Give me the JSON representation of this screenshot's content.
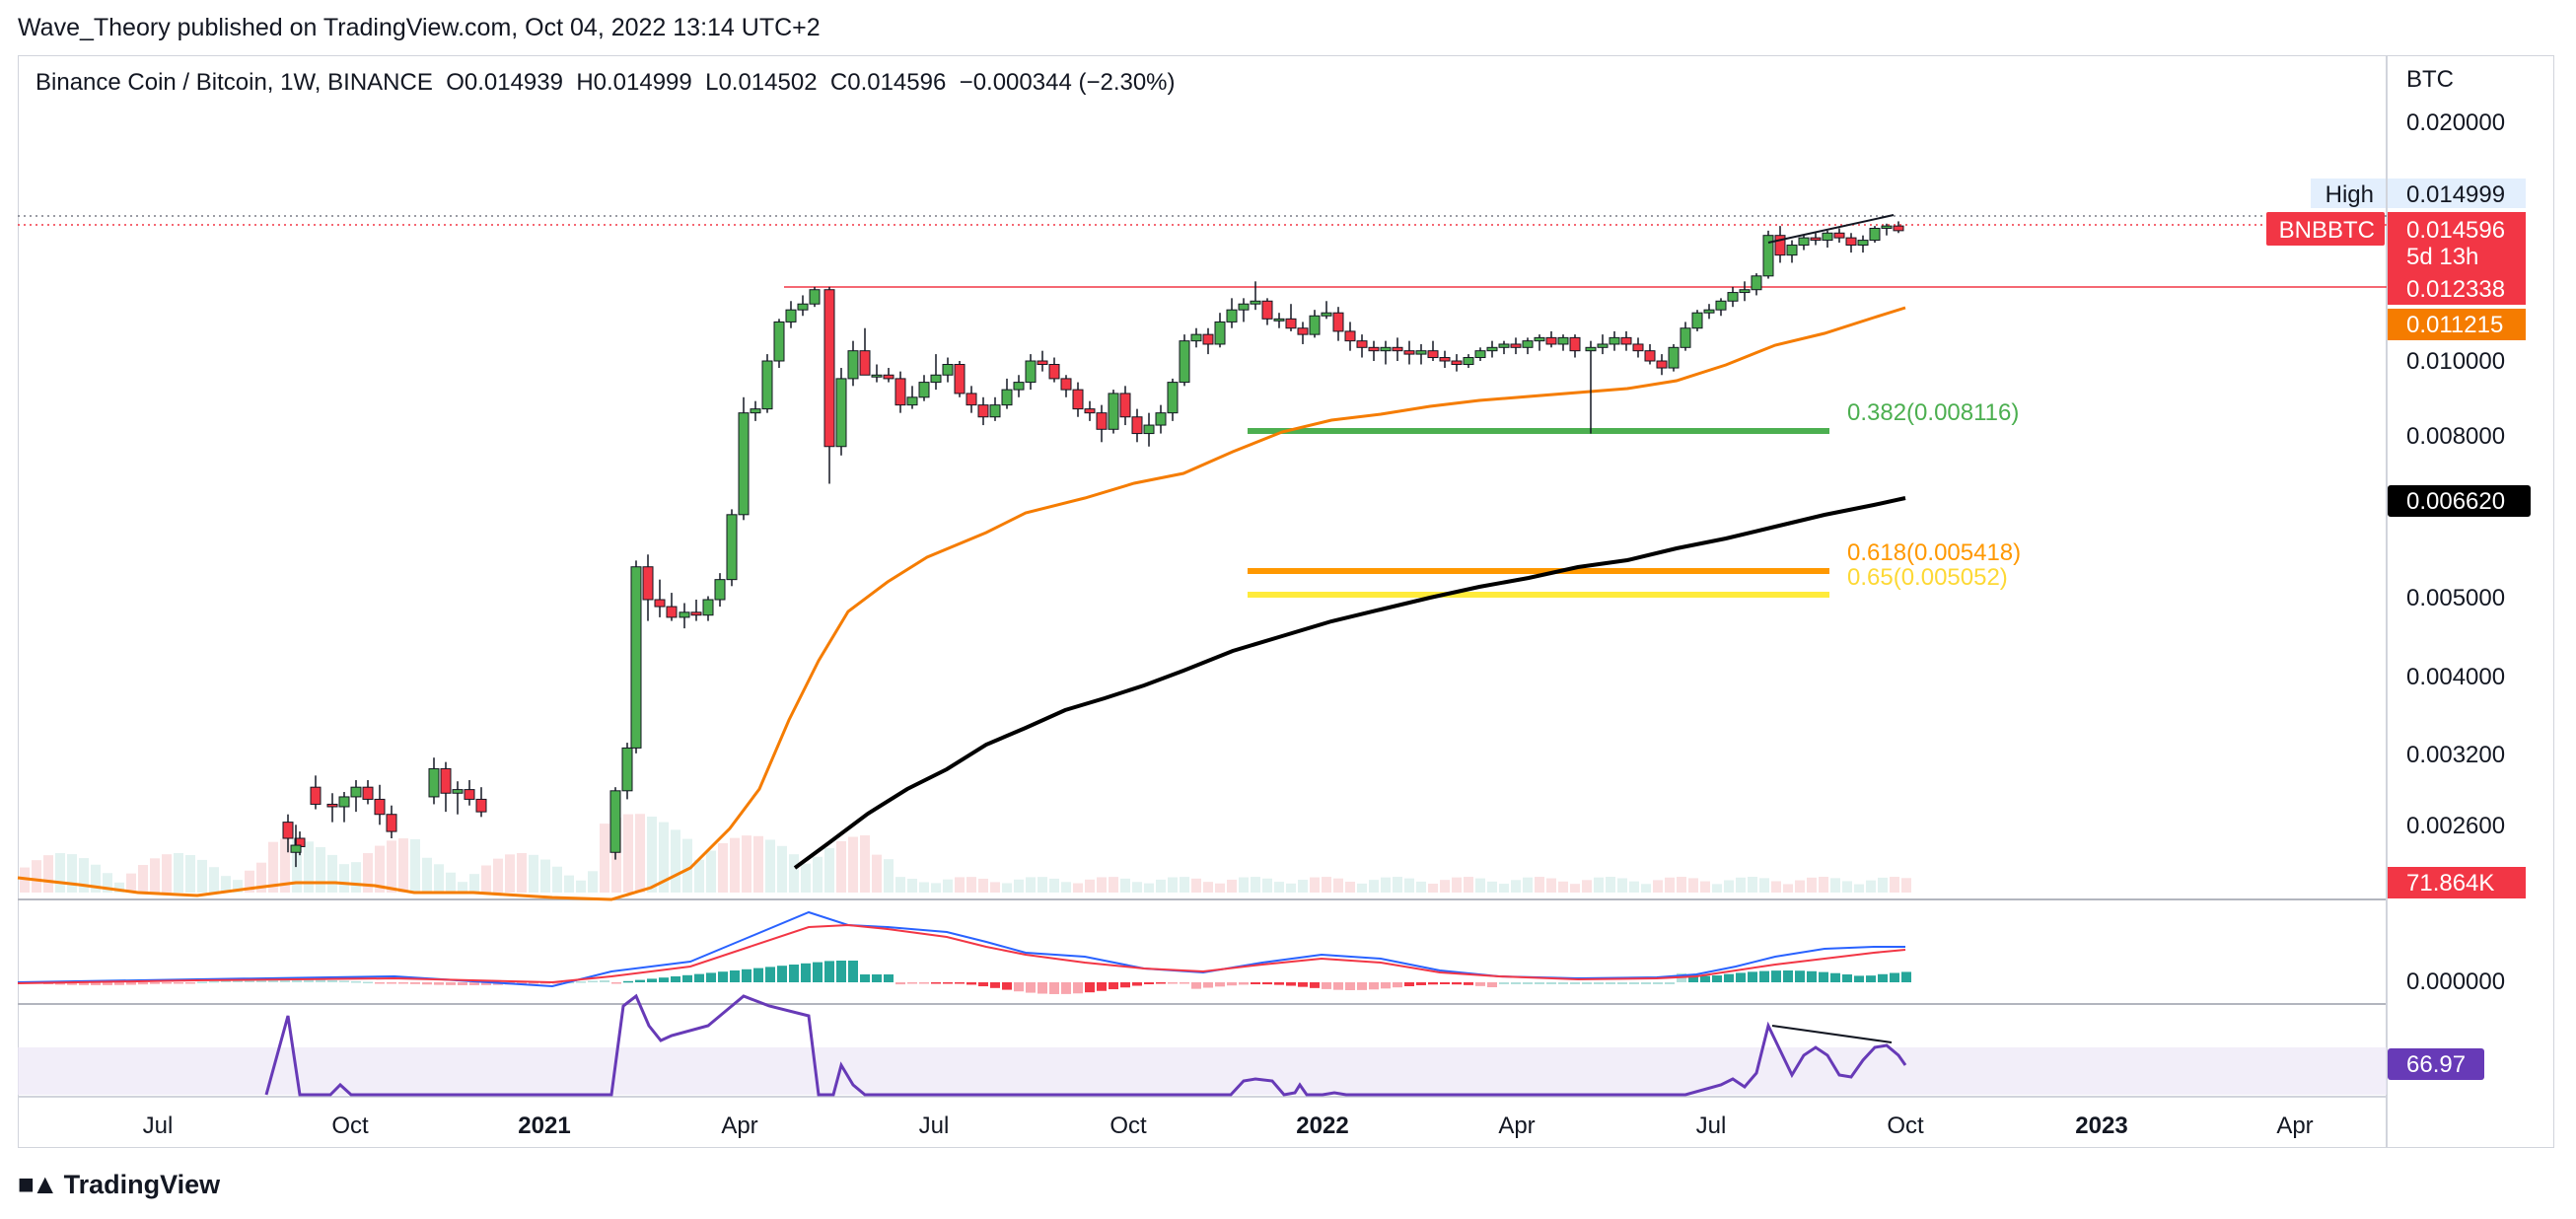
{
  "header": {
    "published_line": "Wave_Theory published on TradingView.com, Oct 04, 2022 13:14 UTC+2"
  },
  "legend": {
    "symbol_line": "Binance Coin / Bitcoin, 1W, BINANCE",
    "open": "O0.014939",
    "high": "H0.014999",
    "low": "L0.014502",
    "close": "C0.014596",
    "change": "−0.000344 (−2.30%)"
  },
  "footer": {
    "brand": "TradingView"
  },
  "colors": {
    "up": "#26a69a",
    "up_body": "#4caf50",
    "down": "#f23645",
    "ema_orange": "#f57c00",
    "ema_black": "#000000",
    "fib_green": "#4caf50",
    "fib_orange": "#ff9800",
    "fib_yellow": "#ffeb3b",
    "macd_line": "#2962ff",
    "signal_line": "#f23645",
    "rsi": "#673ab7"
  },
  "chart_data": {
    "type": "candlestick",
    "pair": "BNBBTC",
    "timeframe": "1W",
    "scale": "log",
    "y_axis": {
      "unit_label": "BTC",
      "ticks": [
        "0.020000",
        "0.010000",
        "0.008000",
        "0.005000",
        "0.004000",
        "0.003200",
        "0.002600",
        "0.000000"
      ]
    },
    "x_axis": {
      "ticks": [
        {
          "label": "Jul",
          "bold": false
        },
        {
          "label": "Oct",
          "bold": false
        },
        {
          "label": "2021",
          "bold": true
        },
        {
          "label": "Apr",
          "bold": false
        },
        {
          "label": "Jul",
          "bold": false
        },
        {
          "label": "Oct",
          "bold": false
        },
        {
          "label": "2022",
          "bold": true
        },
        {
          "label": "Apr",
          "bold": false
        },
        {
          "label": "Jul",
          "bold": false
        },
        {
          "label": "Oct",
          "bold": false
        },
        {
          "label": "2023",
          "bold": true
        },
        {
          "label": "Apr",
          "bold": false
        }
      ]
    },
    "price_tags": [
      {
        "label": "High",
        "value": "0.014999",
        "style": "high"
      },
      {
        "label": "BNBBTC",
        "value": "0.014596",
        "sub": "5d 13h",
        "style": "current"
      },
      {
        "value": "0.012338",
        "style": "resistance"
      },
      {
        "value": "0.011215",
        "style": "ema_fast"
      },
      {
        "value": "0.006620",
        "style": "ema_slow"
      },
      {
        "value": "71.864K",
        "style": "volume"
      },
      {
        "value": "66.97",
        "style": "rsi"
      }
    ],
    "fib_levels": [
      {
        "label": "0.382(0.008116)",
        "ratio": 0.382,
        "price": 0.008116,
        "color": "#4caf50"
      },
      {
        "label": "0.618(0.005418)",
        "ratio": 0.618,
        "price": 0.005418,
        "color": "#ff9800"
      },
      {
        "label": "0.65(0.005052)",
        "ratio": 0.65,
        "price": 0.005052,
        "color": "#ffeb3b"
      }
    ],
    "resistance_level": 0.012338,
    "current_price": 0.014596,
    "high_price": 0.014999,
    "rsi_value": 66.97,
    "volume_value": "71.864K"
  }
}
